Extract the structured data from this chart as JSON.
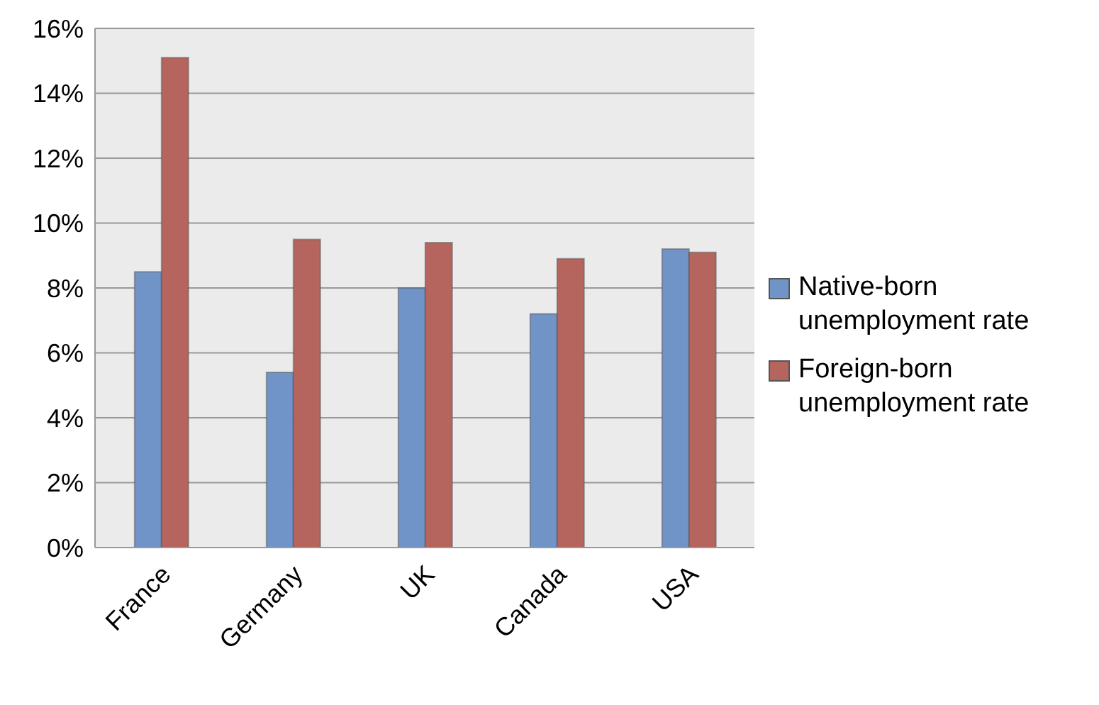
{
  "chart_data": {
    "type": "bar",
    "categories": [
      "France",
      "Germany",
      "UK",
      "Canada",
      "USA"
    ],
    "series": [
      {
        "name": "Native-born unemployment rate",
        "color": "#7094c8",
        "values": [
          8.5,
          5.4,
          8.0,
          7.2,
          9.2
        ]
      },
      {
        "name": "Foreign-born unemployment rate",
        "color": "#b5655e",
        "values": [
          15.1,
          9.5,
          9.4,
          8.9,
          9.1
        ]
      }
    ],
    "ylim": [
      0,
      16
    ],
    "yticks": [
      {
        "value": 0,
        "label": "0%"
      },
      {
        "value": 2,
        "label": "2%"
      },
      {
        "value": 4,
        "label": "4%"
      },
      {
        "value": 6,
        "label": "6%"
      },
      {
        "value": 8,
        "label": "8%"
      },
      {
        "value": 10,
        "label": "10%"
      },
      {
        "value": 12,
        "label": "12%"
      },
      {
        "value": 14,
        "label": "14%"
      },
      {
        "value": 16,
        "label": "16%"
      }
    ],
    "grid": "y",
    "legend": "right"
  }
}
